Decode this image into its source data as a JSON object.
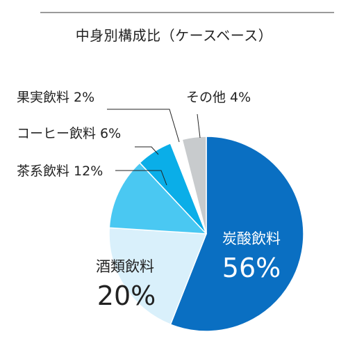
{
  "chart_data": {
    "type": "pie",
    "title": "中身別構成比（ケースベース）",
    "unit": "%",
    "slices": [
      {
        "label": "炭酸飲料",
        "value": 56,
        "color": "#0a6fc2"
      },
      {
        "label": "酒類飲料",
        "value": 20,
        "color": "#d9f0fb"
      },
      {
        "label": "茶系飲料",
        "value": 12,
        "color": "#4ac8f2"
      },
      {
        "label": "コーヒー飲料",
        "value": 6,
        "color": "#0aaee8"
      },
      {
        "label": "果実飲料",
        "value": 2,
        "color": "#ffffff"
      },
      {
        "label": "その他",
        "value": 4,
        "color": "#c8cbcd"
      }
    ],
    "start": "12 o'clock, clockwise",
    "legend": "none (labels inside and outside slices)"
  }
}
